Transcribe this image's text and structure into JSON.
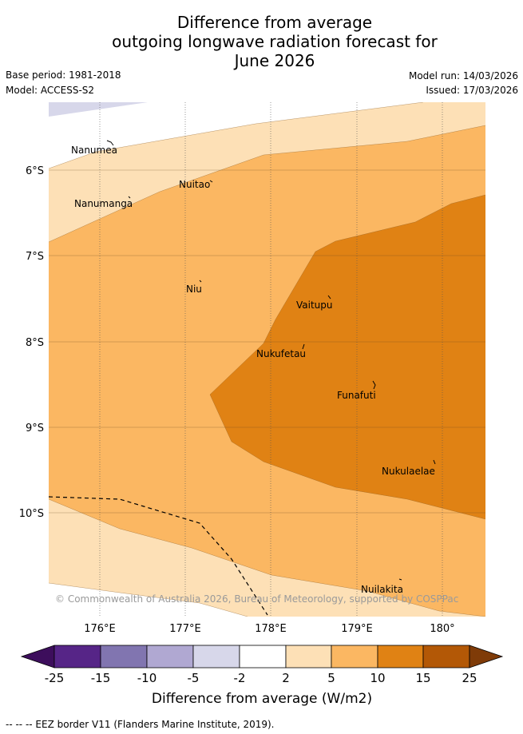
{
  "header": {
    "title_lines": [
      "Difference from average",
      "outgoing longwave radiation forecast for",
      "June 2026"
    ],
    "base_period": "Base period: 1981-2018",
    "model": "Model: ACCESS-S2",
    "model_run": "Model run: 14/03/2026",
    "issued": "Issued: 17/03/2026"
  },
  "map": {
    "lat_labels": [
      "6°S",
      "7°S",
      "8°S",
      "9°S",
      "10°S"
    ],
    "lon_labels": [
      "176°E",
      "177°E",
      "178°E",
      "179°E",
      "180°"
    ],
    "islands": [
      {
        "name": "Nanumea"
      },
      {
        "name": "Nuitao"
      },
      {
        "name": "Nanumanga"
      },
      {
        "name": "Niu"
      },
      {
        "name": "Vaitupu"
      },
      {
        "name": "Nukufetau"
      },
      {
        "name": "Funafuti"
      },
      {
        "name": "Nukulaelae"
      },
      {
        "name": "Nuilakita"
      }
    ],
    "copyright": "© Commonwealth of Australia 2026, Bureau of Meteorology, supported by COSPPac"
  },
  "colorbar": {
    "tick_labels": [
      "-25",
      "-15",
      "-10",
      "-5",
      "-2",
      "2",
      "5",
      "10",
      "15",
      "25"
    ],
    "colors": [
      "#3d0e5c",
      "#562587",
      "#8175b0",
      "#b0a8d2",
      "#d7d7ea",
      "#ffffff",
      "#fde0b6",
      "#fbb762",
      "#e08214",
      "#b35806",
      "#7f3b08"
    ],
    "label": "Difference from average (W/m2)"
  },
  "footnote": "--  --  -- EEZ border V11 (Flanders Marine Institute, 2019)."
}
